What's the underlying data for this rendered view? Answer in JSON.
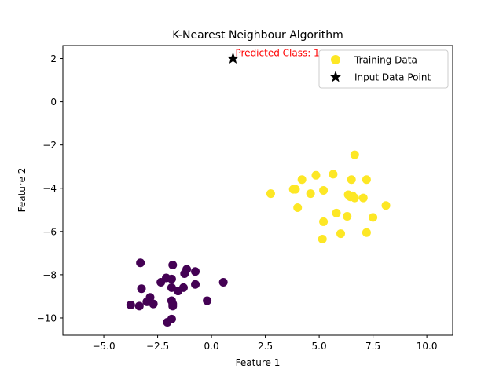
{
  "chart_data": {
    "type": "scatter",
    "title": "K-Nearest Neighbour Algorithm",
    "xlabel": "Feature 1",
    "ylabel": "Feature 2",
    "xlim": [
      -6.9,
      11.2
    ],
    "ylim": [
      -10.8,
      2.6
    ],
    "x_ticks": [
      -5.0,
      -2.5,
      0.0,
      2.5,
      5.0,
      7.5,
      10.0
    ],
    "x_tick_labels": [
      "−5.0",
      "−2.5",
      "0.0",
      "2.5",
      "5.0",
      "7.5",
      "10.0"
    ],
    "y_ticks": [
      2,
      0,
      -2,
      -4,
      -6,
      -8,
      -10
    ],
    "y_tick_labels": [
      "2",
      "0",
      "−2",
      "−4",
      "−6",
      "−8",
      "−10"
    ],
    "grid": false,
    "legend_position": "top-right",
    "colors": {
      "class_0": "#440154",
      "class_1": "#fde725",
      "input_point": "#000000",
      "annotation": "#ff0000"
    },
    "series": [
      {
        "name": "Training Data",
        "marker": "circle",
        "class_0_points": [
          [
            -3.3,
            -7.45
          ],
          [
            -1.8,
            -7.55
          ],
          [
            -1.15,
            -7.75
          ],
          [
            -0.75,
            -7.85
          ],
          [
            -1.25,
            -7.95
          ],
          [
            -2.1,
            -8.15
          ],
          [
            -1.85,
            -8.2
          ],
          [
            -2.35,
            -8.35
          ],
          [
            -0.75,
            -8.45
          ],
          [
            0.55,
            -8.35
          ],
          [
            -1.85,
            -8.6
          ],
          [
            -1.3,
            -8.6
          ],
          [
            -1.55,
            -8.75
          ],
          [
            -3.25,
            -8.65
          ],
          [
            -2.85,
            -9.05
          ],
          [
            -3.0,
            -9.25
          ],
          [
            -1.85,
            -9.2
          ],
          [
            -2.7,
            -9.35
          ],
          [
            -1.8,
            -9.35
          ],
          [
            -1.8,
            -9.45
          ],
          [
            -3.75,
            -9.4
          ],
          [
            -3.35,
            -9.45
          ],
          [
            -0.2,
            -9.2
          ],
          [
            -1.85,
            -10.05
          ],
          [
            -2.05,
            -10.2
          ]
        ],
        "class_1_points": [
          [
            6.65,
            -2.45
          ],
          [
            4.2,
            -3.6
          ],
          [
            4.85,
            -3.4
          ],
          [
            5.65,
            -3.35
          ],
          [
            6.5,
            -3.6
          ],
          [
            7.2,
            -3.6
          ],
          [
            3.8,
            -4.05
          ],
          [
            5.2,
            -4.1
          ],
          [
            4.6,
            -4.25
          ],
          [
            2.75,
            -4.25
          ],
          [
            6.35,
            -4.3
          ],
          [
            6.55,
            -4.35
          ],
          [
            6.45,
            -4.4
          ],
          [
            6.65,
            -4.45
          ],
          [
            7.05,
            -4.45
          ],
          [
            8.1,
            -4.8
          ],
          [
            4.0,
            -4.9
          ],
          [
            5.8,
            -5.15
          ],
          [
            6.3,
            -5.3
          ],
          [
            7.5,
            -5.35
          ],
          [
            5.2,
            -5.55
          ],
          [
            6.0,
            -6.1
          ],
          [
            7.2,
            -6.05
          ],
          [
            5.15,
            -6.35
          ],
          [
            3.9,
            -4.05
          ]
        ]
      },
      {
        "name": "Input Data Point",
        "marker": "star",
        "points": [
          [
            1.0,
            2.0
          ]
        ]
      }
    ],
    "annotations": [
      {
        "text": "Predicted Class: 1",
        "x": 1.0,
        "y": 2.0
      }
    ]
  }
}
